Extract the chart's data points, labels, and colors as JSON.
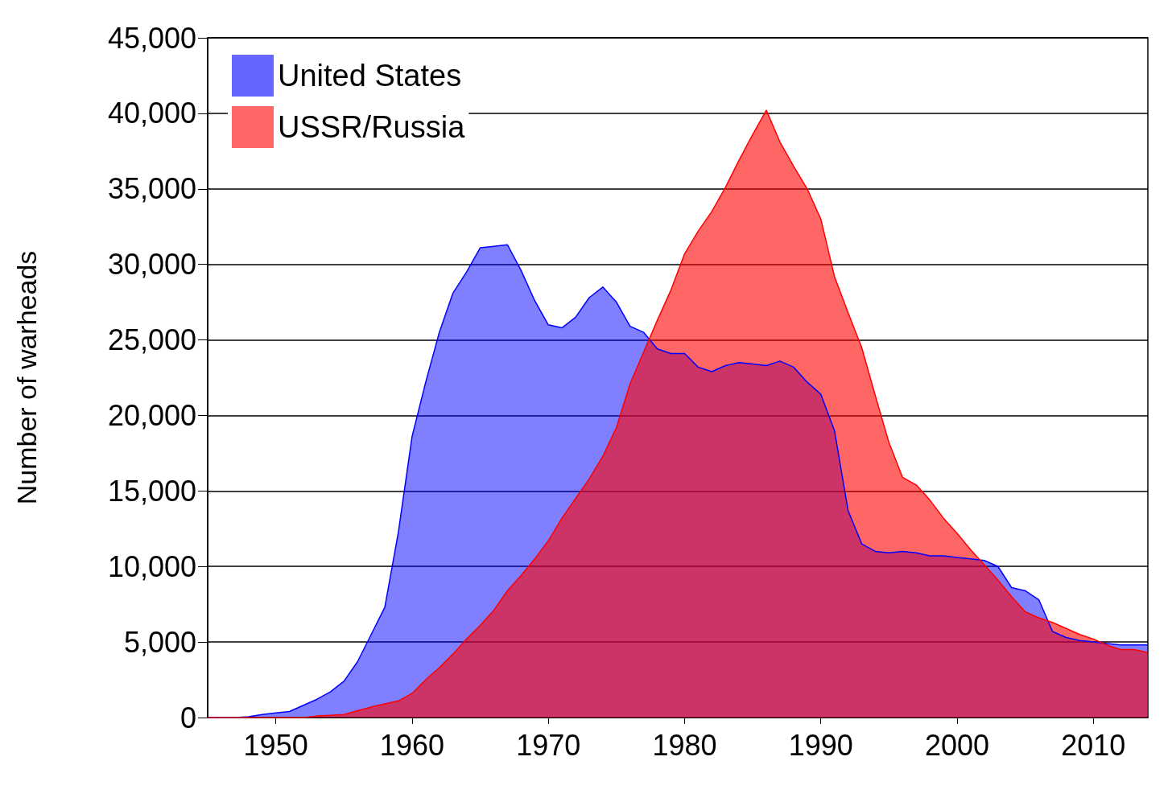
{
  "chart_data": {
    "type": "area",
    "ylabel": "Number of warheads",
    "x": [
      1945,
      1946,
      1947,
      1948,
      1949,
      1950,
      1951,
      1952,
      1953,
      1954,
      1955,
      1956,
      1957,
      1958,
      1959,
      1960,
      1961,
      1962,
      1963,
      1964,
      1965,
      1966,
      1967,
      1968,
      1969,
      1970,
      1971,
      1972,
      1973,
      1974,
      1975,
      1976,
      1977,
      1978,
      1979,
      1980,
      1981,
      1982,
      1983,
      1984,
      1985,
      1986,
      1987,
      1988,
      1989,
      1990,
      1991,
      1992,
      1993,
      1994,
      1995,
      1996,
      1997,
      1998,
      1999,
      2000,
      2001,
      2002,
      2003,
      2004,
      2005,
      2006,
      2007,
      2008,
      2009,
      2010,
      2011,
      2012,
      2013,
      2014
    ],
    "series": [
      {
        "name": "United States",
        "color": "#0000ff",
        "values": [
          0,
          0,
          0,
          50,
          200,
          300,
          400,
          800,
          1200,
          1700,
          2400,
          3700,
          5500,
          7300,
          12300,
          18600,
          22200,
          25500,
          28100,
          29500,
          31100,
          31200,
          31300,
          29600,
          27600,
          26000,
          25800,
          26500,
          27800,
          28500,
          27500,
          25900,
          25500,
          24400,
          24100,
          24100,
          23200,
          22900,
          23300,
          23500,
          23400,
          23300,
          23600,
          23200,
          22200,
          21400,
          19000,
          13700,
          11500,
          11000,
          10900,
          11000,
          10900,
          10700,
          10700,
          10600,
          10500,
          10400,
          10000,
          8600,
          8400,
          7800,
          5700,
          5300,
          5100,
          5000,
          4900,
          4800,
          4800,
          4800
        ]
      },
      {
        "name": "USSR/Russia",
        "color": "#ff0000",
        "values": [
          0,
          0,
          0,
          0,
          0,
          0,
          0,
          0,
          100,
          150,
          200,
          450,
          700,
          900,
          1100,
          1600,
          2500,
          3300,
          4200,
          5200,
          6100,
          7100,
          8400,
          9400,
          10500,
          11700,
          13200,
          14500,
          15800,
          17300,
          19200,
          22100,
          24200,
          26300,
          28300,
          30700,
          32200,
          33500,
          35100,
          36900,
          38600,
          40200,
          38100,
          36500,
          35000,
          33000,
          29200,
          26800,
          24500,
          21300,
          18200,
          15900,
          15400,
          14400,
          13200,
          12200,
          11100,
          10100,
          9100,
          8000,
          7000,
          6600,
          6300,
          5900,
          5500,
          5200,
          4800,
          4500,
          4500,
          4300
        ]
      }
    ],
    "xlim": [
      1945,
      2014
    ],
    "xticks": [
      1950,
      1960,
      1970,
      1980,
      1990,
      2000,
      2010
    ],
    "ylim": [
      0,
      45000
    ],
    "yticks": [
      0,
      {
        "value": 5000,
        "label": "5,000"
      },
      {
        "value": 10000,
        "label": "10,000"
      },
      {
        "value": 15000,
        "label": "15,000"
      },
      {
        "value": 20000,
        "label": "20,000"
      },
      {
        "value": 25000,
        "label": "25,000"
      },
      {
        "value": 30000,
        "label": "30,000"
      },
      {
        "value": 35000,
        "label": "35,000"
      },
      {
        "value": 40000,
        "label": "40,000"
      },
      {
        "value": 45000,
        "label": "45,000"
      }
    ],
    "grid": "y",
    "legend": "top left"
  }
}
